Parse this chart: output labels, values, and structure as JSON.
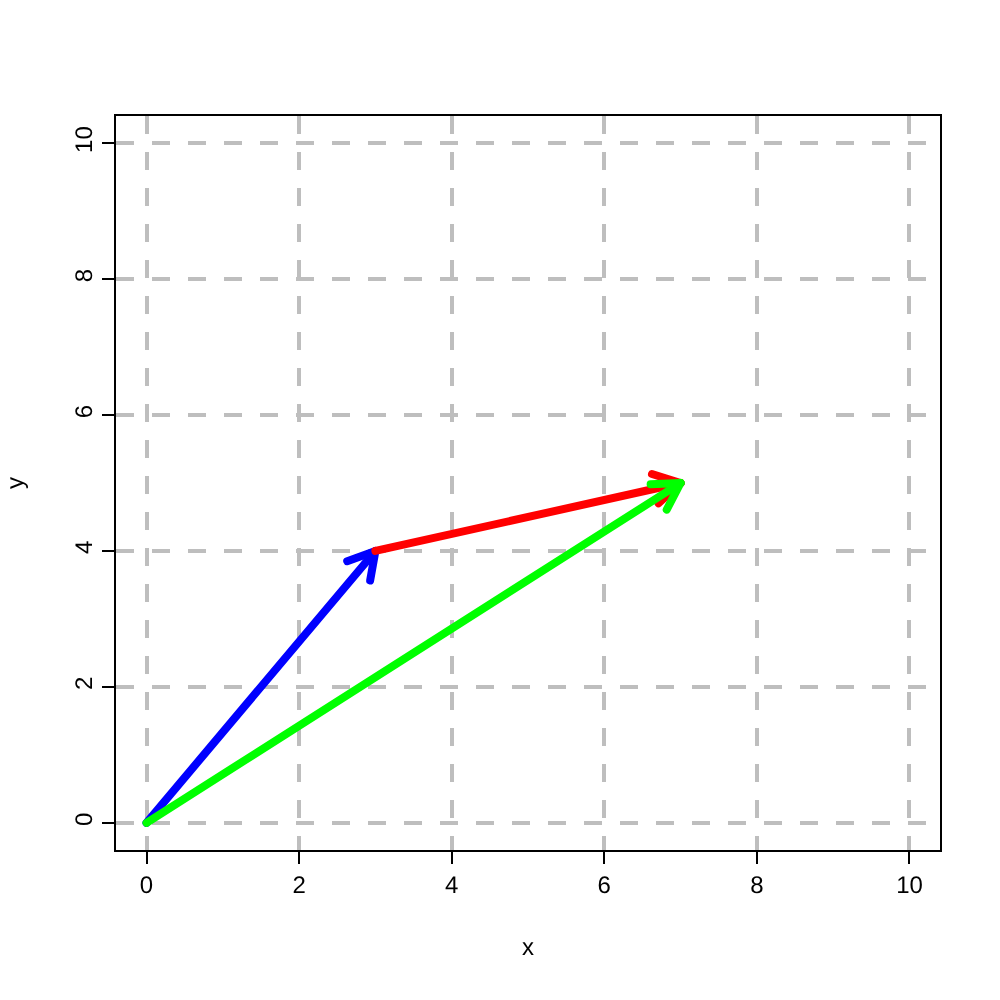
{
  "chart_data": {
    "type": "line",
    "xlabel": "x",
    "ylabel": "y",
    "xlim": [
      -0.4,
      10.4
    ],
    "ylim": [
      -0.4,
      10.4
    ],
    "xticks": [
      0,
      2,
      4,
      6,
      8,
      10
    ],
    "yticks": [
      0,
      2,
      4,
      6,
      8,
      10
    ],
    "grid": true,
    "marker": "none",
    "line_style": "solid",
    "series": [
      {
        "color": "#0000ff",
        "x": [
          0,
          3
        ],
        "values": [
          0,
          4
        ]
      },
      {
        "color": "#ff0000",
        "x": [
          3,
          7
        ],
        "values": [
          4,
          5
        ]
      },
      {
        "color": "#00ff00",
        "x": [
          0,
          7
        ],
        "values": [
          0,
          5
        ]
      }
    ]
  }
}
